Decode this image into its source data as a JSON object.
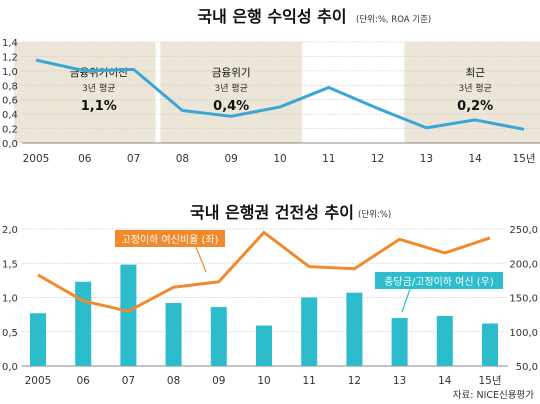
{
  "colors": {
    "line_blue": "#3aa6d3",
    "line_orange": "#f08a2c",
    "bar_teal": "#2dbccb",
    "shade": "#ece6d8",
    "axis_text": "#333333",
    "title_text": "#111111",
    "note_text": "#333333",
    "label_orange_bg": "#f08a2c",
    "label_teal_bg": "#2dbccb"
  },
  "chart_data": [
    {
      "type": "line",
      "title": "국내 은행 수익성 추이",
      "subtitle": "(단위:%, ROA 기준)",
      "categories": [
        "2005",
        "06",
        "07",
        "08",
        "09",
        "10",
        "11",
        "12",
        "13",
        "14",
        "15년"
      ],
      "series": [
        {
          "values": [
            1.15,
            1.0,
            1.02,
            0.45,
            0.37,
            0.5,
            0.77,
            0.48,
            0.21,
            0.32,
            0.19
          ]
        }
      ],
      "yticks": [
        "1,4",
        "1,2",
        "1,0",
        "0,8",
        "0,6",
        "0,4",
        "0,2",
        "0,0"
      ],
      "ylim": [
        0,
        1.4
      ],
      "grid": true,
      "shaded_periods": [
        {
          "from": "2005",
          "to": "07",
          "title": "금융위기이전",
          "subtitle": "3년 평균",
          "value": "1,1%"
        },
        {
          "from": "08",
          "to": "10",
          "title": "금융위기",
          "subtitle": "3년 평균",
          "value": "0,4%"
        },
        {
          "from": "13",
          "to": "15년",
          "title": "최근",
          "subtitle": "3년 평균",
          "value": "0,2%"
        }
      ]
    },
    {
      "type": "bar+line",
      "title": "국내 은행권 건전성 추이",
      "subtitle": "(단위:%)",
      "categories": [
        "2005",
        "06",
        "07",
        "08",
        "09",
        "10",
        "11",
        "12",
        "13",
        "14",
        "15년"
      ],
      "series": [
        {
          "name": "충당금/고정이하 여신 (우)",
          "type": "bar",
          "axis": "right",
          "values": [
            127,
            173,
            198,
            142,
            136,
            109,
            150,
            157,
            120,
            123,
            112
          ]
        },
        {
          "name": "고정이하 여신비율 (좌)",
          "type": "line",
          "axis": "left",
          "values": [
            1.33,
            0.95,
            0.8,
            1.15,
            1.23,
            1.95,
            1.45,
            1.42,
            1.85,
            1.65,
            1.87
          ]
        }
      ],
      "yticks_left": [
        "2,0",
        "1,5",
        "1,0",
        "0,5",
        "0,0"
      ],
      "ylim_left": [
        0,
        2.0
      ],
      "yticks_right": [
        "250,0",
        "200,0",
        "150,0",
        "100,0",
        "50,0"
      ],
      "ylim_right": [
        50,
        250
      ],
      "grid": true
    }
  ],
  "source_note": "자료: NICE신용평가"
}
